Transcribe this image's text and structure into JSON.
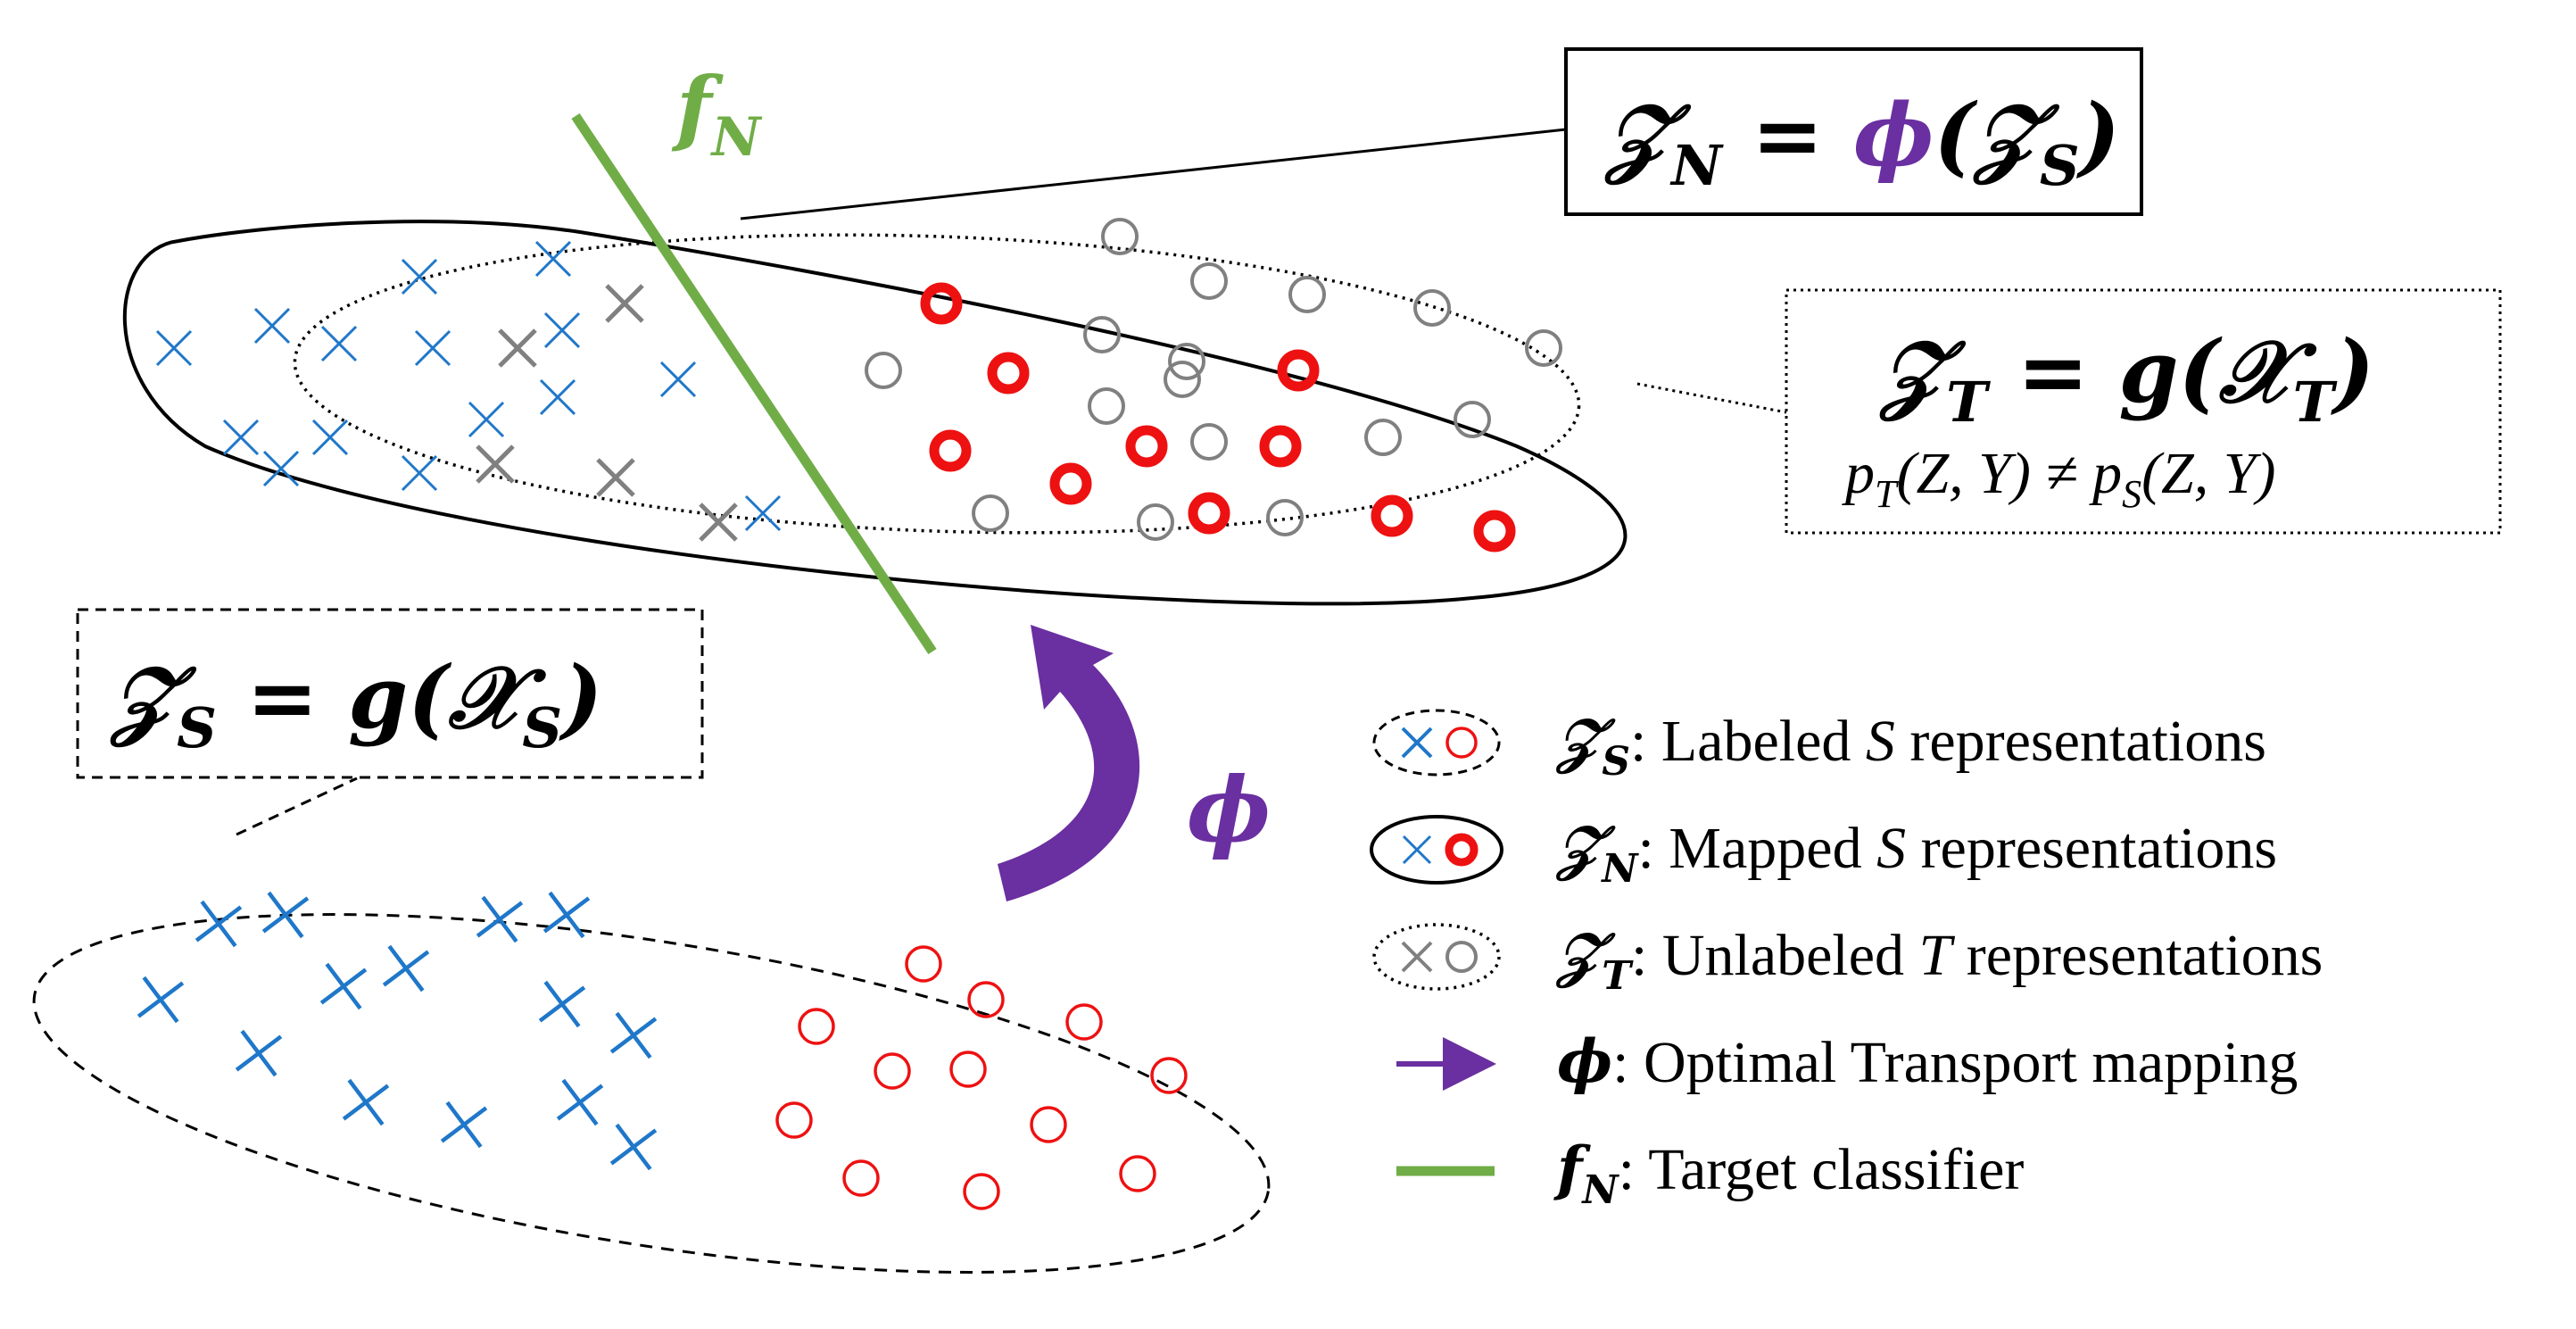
{
  "boxes": {
    "zn": {
      "lhs": "𝒵",
      "lhs_sub": "N",
      "eq": " = ",
      "phi": "ϕ",
      "arg": "(𝒵",
      "arg_sub": "S",
      "close": ")"
    },
    "zt": {
      "lhs": "𝒵",
      "lhs_sub": "T",
      "eq": " = ",
      "g": "g",
      "arg": "(𝒳",
      "arg_sub": "T",
      "close": ")",
      "cond_p1": "p",
      "cond_sub1": "T",
      "cond_mid": "(Z, Y) ≠ ",
      "cond_p2": "p",
      "cond_sub2": "S",
      "cond_end": "(Z, Y)"
    },
    "zs": {
      "lhs": "𝒵",
      "lhs_sub": "S",
      "eq": " = ",
      "g": "g",
      "arg": "(𝒳",
      "arg_sub": "S",
      "close": ")"
    }
  },
  "labels": {
    "fn": {
      "f": "f",
      "sub": "N"
    },
    "phi": "ϕ"
  },
  "legend": [
    {
      "sym": "𝒵",
      "sub": "S",
      "pre": ": Labeled ",
      "it": "S",
      "post": " representations"
    },
    {
      "sym": "𝒵",
      "sub": "N",
      "pre": ": Mapped ",
      "it": "S",
      "post": " representations"
    },
    {
      "sym": "𝒵",
      "sub": "T",
      "pre": ": Unlabeled ",
      "it": "T",
      "post": " representations"
    },
    {
      "sym": "ϕ",
      "sub": "",
      "pre": ": Optimal Transport mapping",
      "it": "",
      "post": ""
    },
    {
      "sym": "f",
      "sub": "N",
      "pre": ": Target classifier",
      "it": "",
      "post": ""
    }
  ],
  "colors": {
    "blue": "#1f77c9",
    "red": "#ee1111",
    "gray": "#808080",
    "purple": "#6a2fa0",
    "green": "#70ad47",
    "black": "#000000"
  }
}
